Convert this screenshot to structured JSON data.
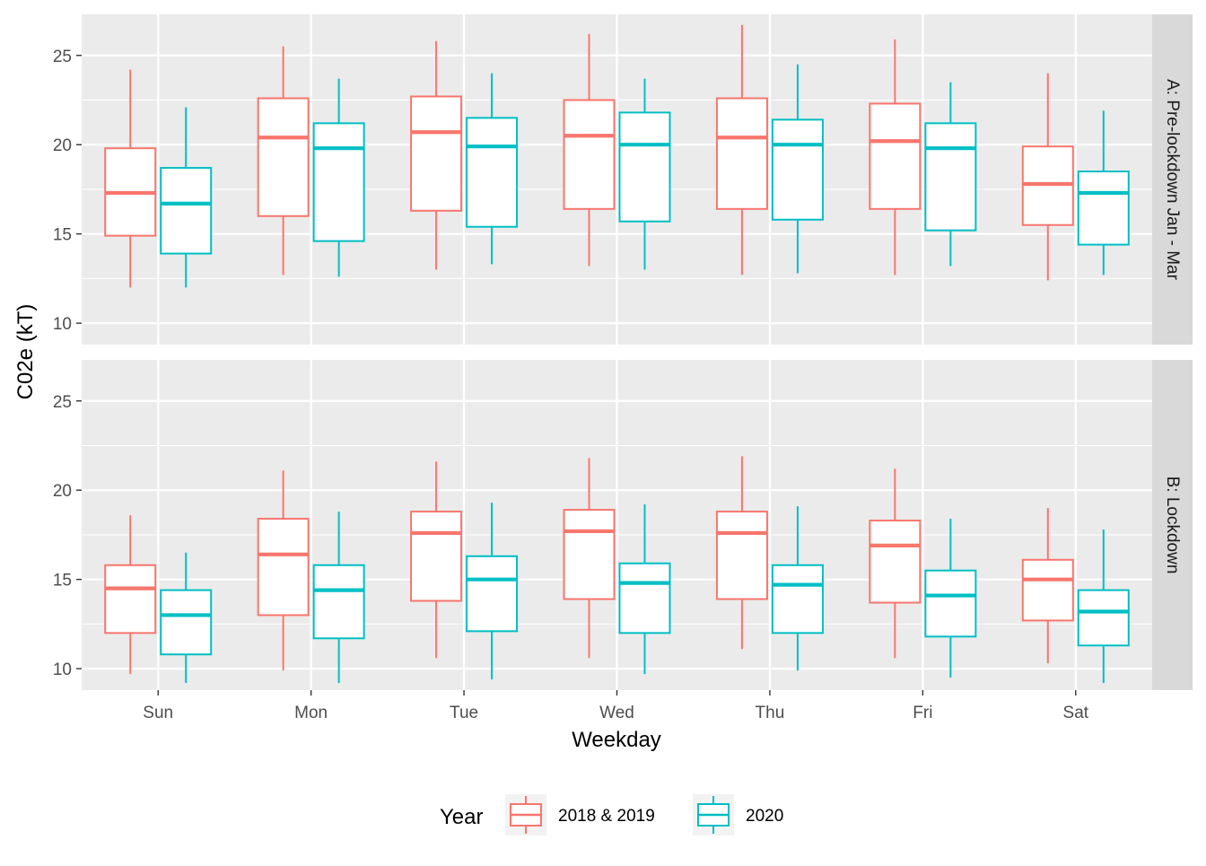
{
  "chart_data": {
    "type": "boxplot",
    "xlabel": "Weekday",
    "ylabel": "C02e (kT)",
    "categories": [
      "Sun",
      "Mon",
      "Tue",
      "Wed",
      "Thu",
      "Fri",
      "Sat"
    ],
    "y_ticks": [
      10,
      15,
      20,
      25
    ],
    "ylim": [
      8.8,
      27.3
    ],
    "grid": true,
    "legend": {
      "title": "Year",
      "position": "bottom",
      "items": [
        {
          "label": "2018 & 2019",
          "color": "#F8766D"
        },
        {
          "label": "2020",
          "color": "#00BFC4"
        }
      ]
    },
    "facets": [
      {
        "label": "A: Pre-lockdown Jan - Mar",
        "series": [
          {
            "name": "2018 & 2019",
            "color": "#F8766D",
            "boxes": [
              {
                "min": 12.0,
                "q1": 14.9,
                "median": 17.3,
                "q3": 19.8,
                "max": 24.2
              },
              {
                "min": 12.7,
                "q1": 16.0,
                "median": 20.4,
                "q3": 22.6,
                "max": 25.5
              },
              {
                "min": 13.0,
                "q1": 16.3,
                "median": 20.7,
                "q3": 22.7,
                "max": 25.8
              },
              {
                "min": 13.2,
                "q1": 16.4,
                "median": 20.5,
                "q3": 22.5,
                "max": 26.2
              },
              {
                "min": 12.7,
                "q1": 16.4,
                "median": 20.4,
                "q3": 22.6,
                "max": 26.7
              },
              {
                "min": 12.7,
                "q1": 16.4,
                "median": 20.2,
                "q3": 22.3,
                "max": 25.9
              },
              {
                "min": 12.4,
                "q1": 15.5,
                "median": 17.8,
                "q3": 19.9,
                "max": 24.0
              }
            ]
          },
          {
            "name": "2020",
            "color": "#00BFC4",
            "boxes": [
              {
                "min": 12.0,
                "q1": 13.9,
                "median": 16.7,
                "q3": 18.7,
                "max": 22.1
              },
              {
                "min": 12.6,
                "q1": 14.6,
                "median": 19.8,
                "q3": 21.2,
                "max": 23.7
              },
              {
                "min": 13.3,
                "q1": 15.4,
                "median": 19.9,
                "q3": 21.5,
                "max": 24.0
              },
              {
                "min": 13.0,
                "q1": 15.7,
                "median": 20.0,
                "q3": 21.8,
                "max": 23.7
              },
              {
                "min": 12.8,
                "q1": 15.8,
                "median": 20.0,
                "q3": 21.4,
                "max": 24.5
              },
              {
                "min": 13.2,
                "q1": 15.2,
                "median": 19.8,
                "q3": 21.2,
                "max": 23.5
              },
              {
                "min": 12.7,
                "q1": 14.4,
                "median": 17.3,
                "q3": 18.5,
                "max": 21.9
              }
            ]
          }
        ]
      },
      {
        "label": "B: Lockdown",
        "series": [
          {
            "name": "2018 & 2019",
            "color": "#F8766D",
            "boxes": [
              {
                "min": 9.7,
                "q1": 12.0,
                "median": 14.5,
                "q3": 15.8,
                "max": 18.6
              },
              {
                "min": 9.9,
                "q1": 13.0,
                "median": 16.4,
                "q3": 18.4,
                "max": 21.1
              },
              {
                "min": 10.6,
                "q1": 13.8,
                "median": 17.6,
                "q3": 18.8,
                "max": 21.6
              },
              {
                "min": 10.6,
                "q1": 13.9,
                "median": 17.7,
                "q3": 18.9,
                "max": 21.8
              },
              {
                "min": 11.1,
                "q1": 13.9,
                "median": 17.6,
                "q3": 18.8,
                "max": 21.9
              },
              {
                "min": 10.6,
                "q1": 13.7,
                "median": 16.9,
                "q3": 18.3,
                "max": 21.2
              },
              {
                "min": 10.3,
                "q1": 12.7,
                "median": 15.0,
                "q3": 16.1,
                "max": 19.0
              }
            ]
          },
          {
            "name": "2020",
            "color": "#00BFC4",
            "boxes": [
              {
                "min": 9.2,
                "q1": 10.8,
                "median": 13.0,
                "q3": 14.4,
                "max": 16.5
              },
              {
                "min": 9.2,
                "q1": 11.7,
                "median": 14.4,
                "q3": 15.8,
                "max": 18.8
              },
              {
                "min": 9.4,
                "q1": 12.1,
                "median": 15.0,
                "q3": 16.3,
                "max": 19.3
              },
              {
                "min": 9.7,
                "q1": 12.0,
                "median": 14.8,
                "q3": 15.9,
                "max": 19.2
              },
              {
                "min": 9.9,
                "q1": 12.0,
                "median": 14.7,
                "q3": 15.8,
                "max": 19.1
              },
              {
                "min": 9.5,
                "q1": 11.8,
                "median": 14.1,
                "q3": 15.5,
                "max": 18.4
              },
              {
                "min": 9.2,
                "q1": 11.3,
                "median": 13.2,
                "q3": 14.4,
                "max": 17.8
              }
            ]
          }
        ]
      }
    ]
  }
}
